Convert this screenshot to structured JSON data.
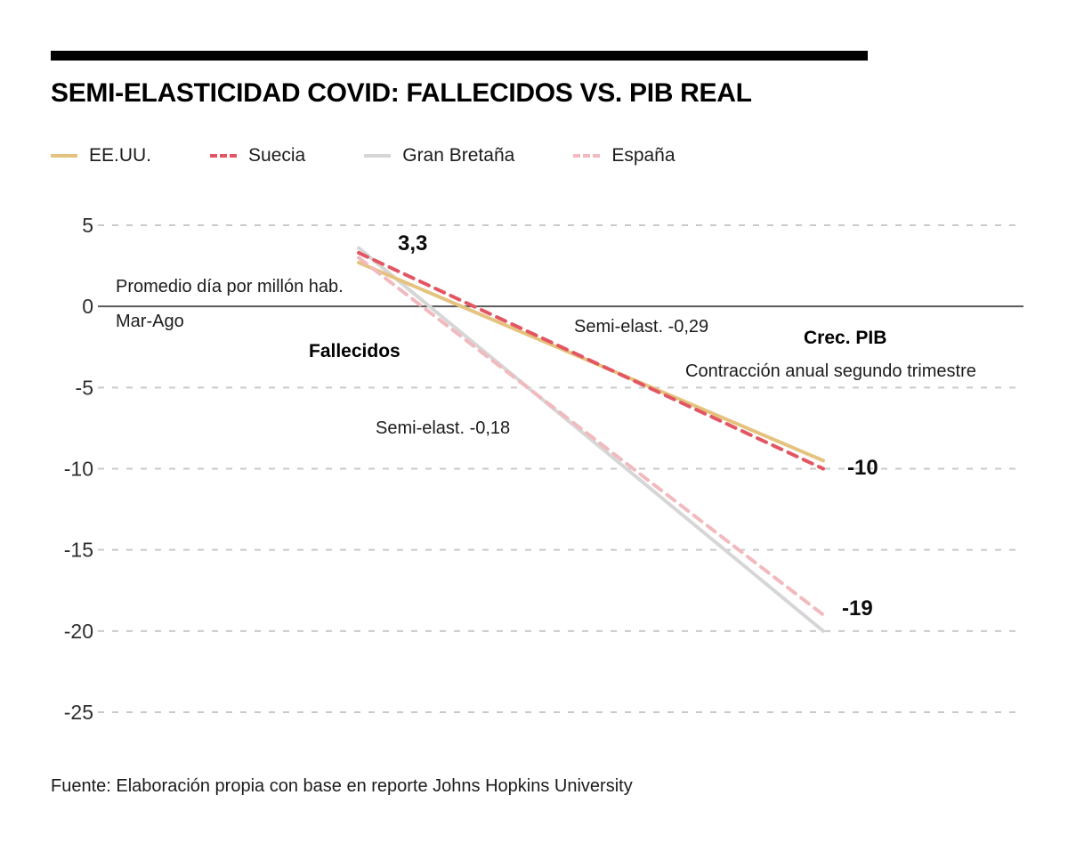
{
  "header": {
    "title": "SEMI-ELASTICIDAD COVID: FALLECIDOS VS. PIB REAL"
  },
  "chart_data": {
    "type": "line",
    "title": "SEMI-ELASTICIDAD COVID: FALLECIDOS VS. PIB REAL",
    "x_endpoints": [
      "Fallecidos",
      "Crec. PIB"
    ],
    "ylim": [
      -25,
      5
    ],
    "yticks": [
      5,
      0,
      -5,
      -10,
      -15,
      -20,
      -25
    ],
    "grid": "dashed horizontal, solid zero line",
    "legend_position": "top",
    "series": [
      {
        "name": "EE.UU.",
        "color": "#e5c37f",
        "style": "solid",
        "values": [
          2.7,
          -9.5
        ]
      },
      {
        "name": "Suecia",
        "color": "#e25663",
        "style": "dashed",
        "values": [
          3.3,
          -10
        ]
      },
      {
        "name": "Gran Bretaña",
        "color": "#d6d6d6",
        "style": "solid",
        "values": [
          3.6,
          -20
        ]
      },
      {
        "name": "España",
        "color": "#f1babe",
        "style": "dashed",
        "values": [
          3.0,
          -19
        ]
      }
    ],
    "annotations": {
      "start_value": "3,3",
      "axis_note_1": "Promedio día por millón hab.",
      "axis_note_2": "Mar-Ago",
      "left_axis_title": "Fallecidos",
      "semi_elast_upper": "Semi-elast. -0,29",
      "right_axis_title": "Crec. PIB",
      "right_axis_subtitle": "Contracción anual segundo trimestre",
      "semi_elast_lower": "Semi-elast. -0,18",
      "end_value_upper": "-10",
      "end_value_lower": "-19"
    }
  },
  "footer": {
    "source": "Fuente: Elaboración propia con base en reporte Johns Hopkins University"
  }
}
